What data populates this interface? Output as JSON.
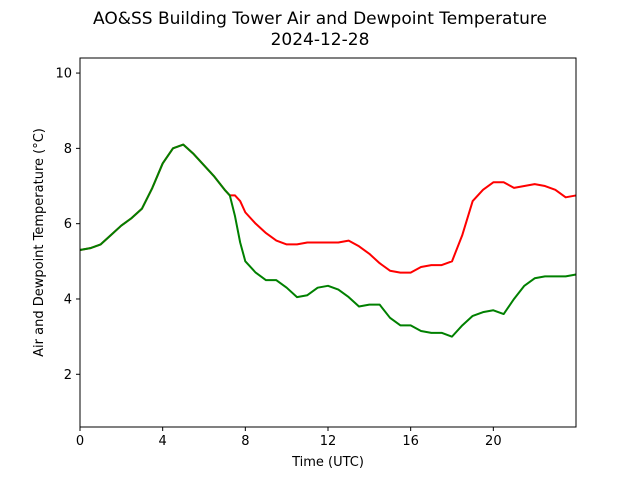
{
  "chart_data": {
    "type": "line",
    "title": "AO&SS Building Tower Air and Dewpoint Temperature",
    "subtitle": "2024-12-28",
    "xlabel": "Time (UTC)",
    "ylabel": "Air and Dewpoint Temperature (°C)",
    "xlim": [
      0,
      24
    ],
    "ylim": [
      0.6,
      10.4
    ],
    "xticks": [
      0,
      4,
      8,
      12,
      16,
      20
    ],
    "yticks": [
      2,
      4,
      6,
      8,
      10
    ],
    "grid": false,
    "legend": "none",
    "series": [
      {
        "color": "#ff0000",
        "x": [
          0,
          0.5,
          1,
          1.5,
          2,
          2.5,
          3,
          3.5,
          4,
          4.5,
          5,
          5.5,
          6,
          6.5,
          7,
          7.25,
          7.5,
          7.75,
          8,
          8.5,
          9,
          9.5,
          10,
          10.5,
          11,
          11.5,
          12,
          12.5,
          13,
          13.5,
          14,
          14.5,
          15,
          15.5,
          16,
          16.5,
          17,
          17.5,
          18,
          18.5,
          19,
          19.5,
          20,
          20.5,
          21,
          21.5,
          22,
          22.5,
          23,
          23.5,
          24
        ],
        "y": [
          5.3,
          5.35,
          5.45,
          5.7,
          5.95,
          6.15,
          6.4,
          6.95,
          7.6,
          8.0,
          8.1,
          7.85,
          7.55,
          7.25,
          6.9,
          6.75,
          6.75,
          6.6,
          6.3,
          6.0,
          5.75,
          5.55,
          5.45,
          5.45,
          5.5,
          5.5,
          5.5,
          5.5,
          5.55,
          5.4,
          5.2,
          4.95,
          4.75,
          4.7,
          4.7,
          4.85,
          4.9,
          4.9,
          5.0,
          5.7,
          6.6,
          6.9,
          7.1,
          7.1,
          6.95,
          7.0,
          7.05,
          7.0,
          6.9,
          6.7,
          6.75
        ]
      },
      {
        "color": "#008000",
        "x": [
          0,
          0.5,
          1,
          1.5,
          2,
          2.5,
          3,
          3.5,
          4,
          4.5,
          5,
          5.5,
          6,
          6.5,
          7,
          7.25,
          7.5,
          7.75,
          8,
          8.5,
          9,
          9.5,
          10,
          10.5,
          11,
          11.5,
          12,
          12.5,
          13,
          13.5,
          14,
          14.5,
          15,
          15.5,
          16,
          16.5,
          17,
          17.5,
          18,
          18.5,
          19,
          19.5,
          20,
          20.5,
          21,
          21.5,
          22,
          22.5,
          23,
          23.5,
          24
        ],
        "y": [
          5.3,
          5.35,
          5.45,
          5.7,
          5.95,
          6.15,
          6.4,
          6.95,
          7.6,
          8.0,
          8.1,
          7.85,
          7.55,
          7.25,
          6.9,
          6.75,
          6.2,
          5.5,
          5.0,
          4.7,
          4.5,
          4.5,
          4.3,
          4.05,
          4.1,
          4.3,
          4.35,
          4.25,
          4.05,
          3.8,
          3.85,
          3.85,
          3.5,
          3.3,
          3.3,
          3.15,
          3.1,
          3.1,
          3.0,
          3.3,
          3.55,
          3.65,
          3.7,
          3.6,
          4.0,
          4.35,
          4.55,
          4.6,
          4.6,
          4.6,
          4.65
        ]
      }
    ]
  }
}
